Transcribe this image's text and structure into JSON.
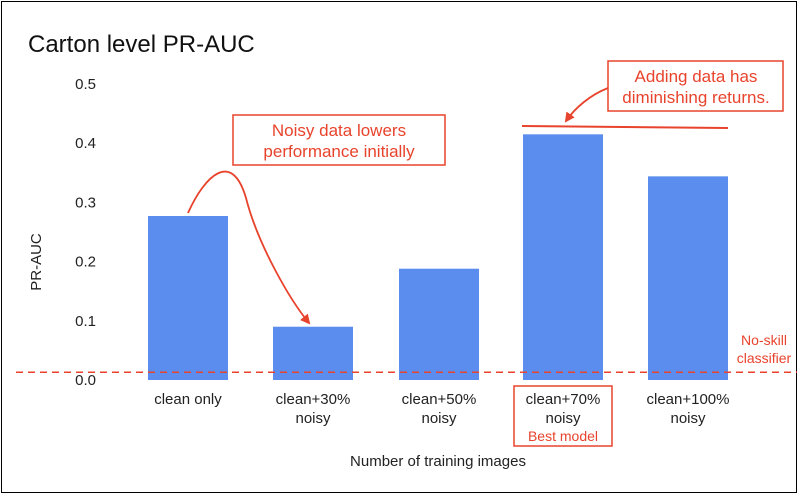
{
  "chart_data": {
    "type": "bar",
    "title": "Carton level PR-AUC",
    "xlabel": "Number of training images",
    "ylabel": "PR-AUC",
    "ylim": [
      0,
      0.5
    ],
    "yticks": [
      "0.0",
      "0.1",
      "0.2",
      "0.3",
      "0.4",
      "0.5"
    ],
    "grid": false,
    "categories": [
      [
        "clean only"
      ],
      [
        "clean+30%",
        "noisy"
      ],
      [
        "clean+50%",
        "noisy"
      ],
      [
        "clean+70%",
        "noisy"
      ],
      [
        "clean+100%",
        "noisy"
      ]
    ],
    "values": [
      0.277,
      0.09,
      0.188,
      0.415,
      0.344
    ],
    "bar_color": "#5b8def",
    "accent_color": "#e8432c",
    "baseline": {
      "value": 0.013,
      "label": [
        "No-skill",
        "classifier"
      ]
    },
    "best_model": {
      "index": 3,
      "label": "Best model"
    },
    "annotations": [
      {
        "id": "noisy",
        "lines": [
          "Noisy data lowers",
          "performance initially"
        ]
      },
      {
        "id": "diminishing",
        "lines": [
          "Adding data has",
          "diminishing returns."
        ]
      }
    ]
  }
}
